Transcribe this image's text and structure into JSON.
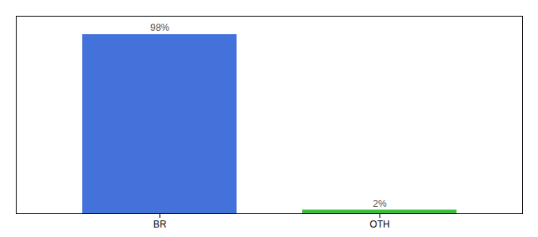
{
  "chart_data": {
    "type": "bar",
    "categories": [
      "BR",
      "OTH"
    ],
    "values": [
      98,
      2
    ],
    "value_labels": [
      "98%",
      "2%"
    ],
    "colors": [
      "#4472db",
      "#3abf3a"
    ],
    "ylim": [
      0,
      108
    ],
    "data_labels": true,
    "tick_labels": "x",
    "grid": false
  }
}
